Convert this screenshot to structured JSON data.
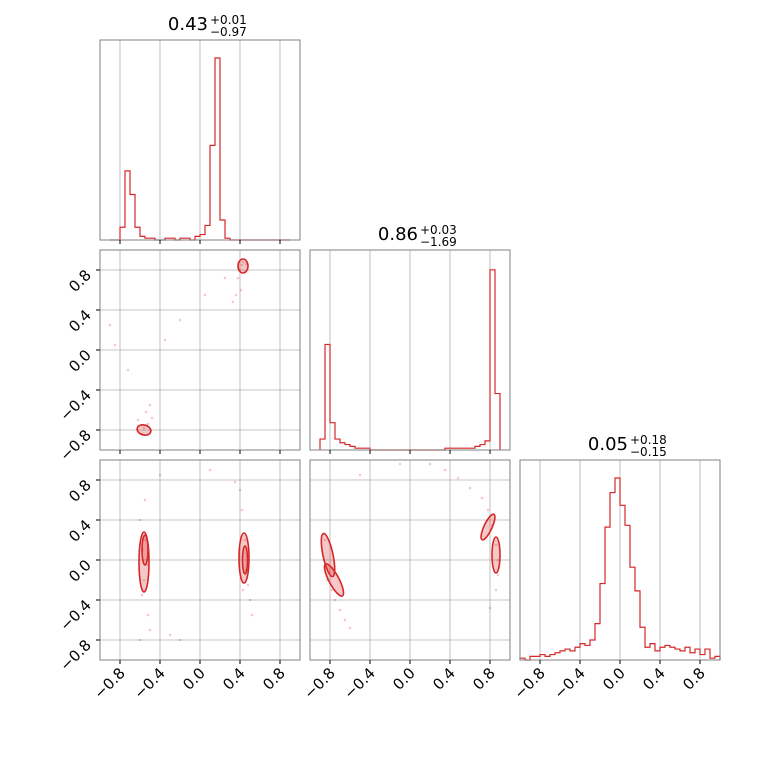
{
  "colors": {
    "accent": "#d62728",
    "grid": "#b0b0b0",
    "frame": "#808080",
    "text": "#000000"
  },
  "chart_data": {
    "type": "corner",
    "ticks": [
      "-0.8",
      "-0.4",
      "0.0",
      "0.4",
      "0.8"
    ],
    "tick_values": [
      -0.8,
      -0.4,
      0.0,
      0.4,
      0.8
    ],
    "range": [
      -1,
      1
    ],
    "grid": true,
    "titles": [
      {
        "value": "0.43",
        "plus": "+0.01",
        "minus": "-0.97"
      },
      {
        "value": "0.86",
        "plus": "+0.03",
        "minus": "-1.69"
      },
      {
        "value": "0.05",
        "plus": "+0.18",
        "minus": "-0.15"
      }
    ],
    "histograms": [
      {
        "bin_start": -0.9,
        "bin_width": 0.05,
        "values": [
          0,
          0,
          0.07,
          0.38,
          0.25,
          0.07,
          0.02,
          0.01,
          0.01,
          0,
          0,
          0.01,
          0.01,
          0,
          0.01,
          0.01,
          0,
          0.02,
          0.03,
          0.08,
          0.52,
          1.0,
          0.11,
          0.01,
          0,
          0,
          0,
          0,
          0,
          0,
          0,
          0,
          0,
          0,
          0,
          0
        ]
      },
      {
        "bin_start": -0.9,
        "bin_width": 0.05,
        "values": [
          0.06,
          0.58,
          0.15,
          0.06,
          0.04,
          0.03,
          0.02,
          0.01,
          0.01,
          0.01,
          0,
          0,
          0,
          0,
          0,
          0,
          0,
          0,
          0,
          0,
          0,
          0,
          0,
          0,
          0,
          0.01,
          0.01,
          0.01,
          0.01,
          0.01,
          0.01,
          0.02,
          0.03,
          0.05,
          0.99,
          0.31
        ]
      },
      {
        "bin_start": -1.0,
        "bin_width": 0.05,
        "values": [
          0.01,
          0.0,
          0.02,
          0.02,
          0.03,
          0.02,
          0.03,
          0.04,
          0.05,
          0.06,
          0.05,
          0.07,
          0.09,
          0.08,
          0.11,
          0.2,
          0.42,
          0.73,
          0.92,
          1.0,
          0.85,
          0.74,
          0.51,
          0.38,
          0.18,
          0.07,
          0.09,
          0.05,
          0.07,
          0.08,
          0.07,
          0.06,
          0.05,
          0.07,
          0.04,
          0.06,
          0.03,
          0.06,
          0.01,
          0.02
        ]
      }
    ],
    "scatter": {
      "x1_x0": [
        [
          0.43,
          0.88
        ],
        [
          0.42,
          0.85
        ],
        [
          0.46,
          0.86
        ],
        [
          0.4,
          0.8
        ],
        [
          0.45,
          0.78
        ],
        [
          0.38,
          0.72
        ],
        [
          0.41,
          0.6
        ],
        [
          0.36,
          0.55
        ],
        [
          0.33,
          0.48
        ],
        [
          -0.56,
          -0.78
        ],
        [
          -0.52,
          -0.74
        ],
        [
          -0.58,
          -0.84
        ],
        [
          -0.54,
          -0.62
        ],
        [
          -0.5,
          -0.55
        ],
        [
          -0.62,
          -0.7
        ],
        [
          -0.48,
          -0.68
        ],
        [
          -0.9,
          0.25
        ],
        [
          -0.85,
          0.05
        ],
        [
          -0.72,
          -0.2
        ],
        [
          -0.2,
          0.3
        ],
        [
          0.05,
          0.55
        ],
        [
          0.25,
          0.72
        ],
        [
          -0.35,
          0.1
        ]
      ],
      "x2_x0": [
        [
          -0.55,
          0.2
        ],
        [
          -0.57,
          0.1
        ],
        [
          -0.53,
          -0.05
        ],
        [
          -0.56,
          -0.2
        ],
        [
          -0.58,
          -0.35
        ],
        [
          -0.52,
          -0.55
        ],
        [
          -0.6,
          0.4
        ],
        [
          -0.55,
          0.6
        ],
        [
          -0.5,
          -0.7
        ],
        [
          -0.6,
          -0.8
        ],
        [
          0.42,
          0.5
        ],
        [
          0.45,
          0.2
        ],
        [
          0.46,
          -0.1
        ],
        [
          0.43,
          -0.3
        ],
        [
          0.48,
          -0.25
        ],
        [
          0.35,
          0.78
        ],
        [
          0.4,
          0.7
        ],
        [
          0.5,
          -0.4
        ],
        [
          0.52,
          -0.55
        ],
        [
          -0.3,
          -0.75
        ],
        [
          -0.2,
          -0.8
        ],
        [
          0.1,
          0.9
        ],
        [
          -0.4,
          0.85
        ]
      ],
      "x2_x1": [
        [
          -0.85,
          0.2
        ],
        [
          -0.86,
          0.0
        ],
        [
          -0.83,
          -0.2
        ],
        [
          -0.78,
          -0.3
        ],
        [
          -0.75,
          -0.4
        ],
        [
          -0.7,
          -0.5
        ],
        [
          -0.65,
          -0.6
        ],
        [
          -0.6,
          -0.68
        ],
        [
          0.88,
          0.0
        ],
        [
          0.86,
          0.15
        ],
        [
          0.82,
          0.35
        ],
        [
          0.78,
          0.5
        ],
        [
          0.72,
          0.62
        ],
        [
          0.6,
          0.72
        ],
        [
          0.48,
          0.82
        ],
        [
          0.35,
          0.9
        ],
        [
          0.2,
          0.96
        ],
        [
          -0.1,
          0.96
        ],
        [
          -0.5,
          0.85
        ],
        [
          0.88,
          -0.15
        ],
        [
          0.86,
          -0.3
        ],
        [
          0.8,
          -0.48
        ]
      ]
    },
    "contours": {
      "x1_x0": [
        {
          "cx": -0.56,
          "cy": -0.8,
          "rx": 0.07,
          "ry": 0.05,
          "rot": 15
        },
        {
          "cx": 0.43,
          "cy": 0.84,
          "rx": 0.05,
          "ry": 0.07,
          "rot": 0
        }
      ],
      "x2_x0": [
        {
          "cx": -0.56,
          "cy": -0.02,
          "rx": 0.05,
          "ry": 0.3,
          "rot": 0
        },
        {
          "cx": -0.55,
          "cy": 0.1,
          "rx": 0.03,
          "ry": 0.15,
          "rot": 0
        },
        {
          "cx": 0.44,
          "cy": 0.02,
          "rx": 0.05,
          "ry": 0.25,
          "rot": 0
        },
        {
          "cx": 0.45,
          "cy": 0.0,
          "rx": 0.025,
          "ry": 0.14,
          "rot": 0
        }
      ],
      "x2_x1": [
        {
          "cx": -0.82,
          "cy": 0.05,
          "rx": 0.05,
          "ry": 0.22,
          "rot": -12
        },
        {
          "cx": -0.76,
          "cy": -0.2,
          "rx": 0.05,
          "ry": 0.18,
          "rot": -28
        },
        {
          "cx": 0.86,
          "cy": 0.05,
          "rx": 0.04,
          "ry": 0.18,
          "rot": 0
        },
        {
          "cx": 0.78,
          "cy": 0.33,
          "rx": 0.04,
          "ry": 0.14,
          "rot": 25
        }
      ]
    }
  }
}
